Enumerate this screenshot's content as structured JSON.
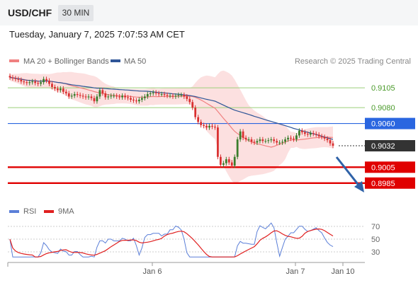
{
  "header": {
    "symbol": "USD/CHF",
    "timeframe": "30 MIN",
    "datetime": "Tuesday, January 7, 2025 7:07:53 AM CET"
  },
  "legend": {
    "ma20_label": "MA 20 + Bollinger Bands",
    "ma20_color": "#f08080",
    "ma50_label": "MA 50",
    "ma50_color": "#2f5597",
    "copyright": "Research © 2025 Trading Central"
  },
  "rsi_legend": {
    "rsi_label": "RSI",
    "rsi_color": "#5b7fd8",
    "ma_label": "9MA",
    "ma_color": "#e02020"
  },
  "colors": {
    "up_candle": "#3a7d2c",
    "down_candle": "#d93030",
    "band_fill": "#fbd5d5",
    "support_line": "#e00000",
    "pivot_line": "#2a66e0",
    "resistance_line": "#9bcf7a",
    "arrow": "#2f62a8"
  },
  "chart_data": {
    "type": "candlestick",
    "yrange": [
      0.8975,
      0.913
    ],
    "levels": [
      {
        "value": 0.9105,
        "label": "0.9105",
        "kind": "resistance"
      },
      {
        "value": 0.908,
        "label": "0.9080",
        "kind": "resistance"
      },
      {
        "value": 0.906,
        "label": "0.9060",
        "kind": "pivot"
      },
      {
        "value": 0.9032,
        "label": "0.9032",
        "kind": "last"
      },
      {
        "value": 0.9005,
        "label": "0.9005",
        "kind": "support"
      },
      {
        "value": 0.8985,
        "label": "0.8985",
        "kind": "support"
      }
    ],
    "x_ticks": [
      "Jan 6",
      "Jan 7",
      "Jan 10"
    ],
    "rsi_ticks": [
      "70",
      "50",
      "30"
    ],
    "candles_close": [
      0.9118,
      0.9117,
      0.9116,
      0.9115,
      0.9113,
      0.9112,
      0.9111,
      0.9112,
      0.9113,
      0.9111,
      0.911,
      0.9112,
      0.9116,
      0.9114,
      0.911,
      0.9106,
      0.9104,
      0.9102,
      0.9104,
      0.91,
      0.9098,
      0.9094,
      0.9095,
      0.9097,
      0.9096,
      0.9095,
      0.9094,
      0.9093,
      0.9094,
      0.9092,
      0.9088,
      0.9094,
      0.9102,
      0.9098,
      0.9093,
      0.9094,
      0.9095,
      0.9095,
      0.9094,
      0.9093,
      0.9095,
      0.9093,
      0.9092,
      0.909,
      0.9089,
      0.9088,
      0.909,
      0.9092,
      0.9094,
      0.9097,
      0.9098,
      0.9099,
      0.9098,
      0.9097,
      0.9097,
      0.9096,
      0.9095,
      0.9095,
      0.9094,
      0.9095,
      0.9096,
      0.9096,
      0.9094,
      0.9091,
      0.9087,
      0.908,
      0.9068,
      0.9062,
      0.9058,
      0.9057,
      0.9055,
      0.9057,
      0.9056,
      0.9055,
      0.9018,
      0.9008,
      0.901,
      0.9015,
      0.9011,
      0.9007,
      0.9018,
      0.904,
      0.905,
      0.9042,
      0.904,
      0.904,
      0.9037,
      0.9036,
      0.9038,
      0.904,
      0.9038,
      0.9038,
      0.9039,
      0.904,
      0.9038,
      0.9036,
      0.9036,
      0.9037,
      0.904,
      0.9042,
      0.9041,
      0.904,
      0.9045,
      0.9051,
      0.9049,
      0.9047,
      0.9046,
      0.9048,
      0.9047,
      0.9046,
      0.9044,
      0.9043,
      0.9041,
      0.9039,
      0.9035,
      0.9032
    ],
    "rsi_note": "RSI oscillates between about 30 and 70"
  }
}
